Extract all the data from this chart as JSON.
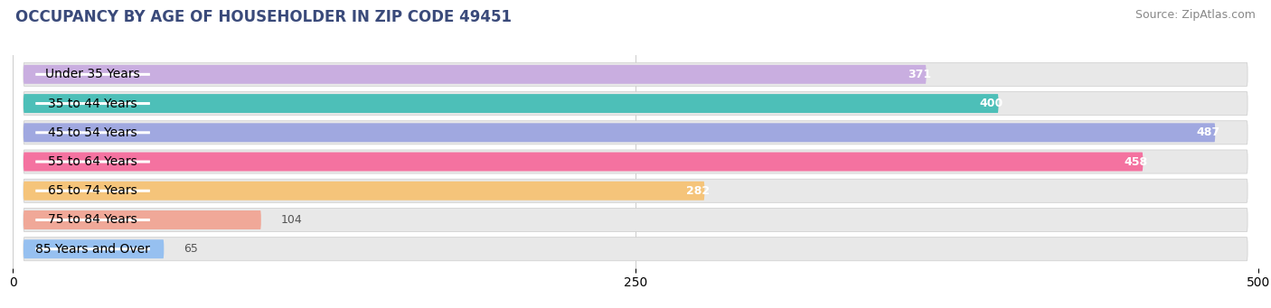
{
  "title": "OCCUPANCY BY AGE OF HOUSEHOLDER IN ZIP CODE 49451",
  "source": "Source: ZipAtlas.com",
  "categories": [
    "Under 35 Years",
    "35 to 44 Years",
    "45 to 54 Years",
    "55 to 64 Years",
    "65 to 74 Years",
    "75 to 84 Years",
    "85 Years and Over"
  ],
  "values": [
    371,
    400,
    487,
    458,
    282,
    104,
    65
  ],
  "bar_colors": [
    "#c9aee0",
    "#4dbfb8",
    "#a0a8e0",
    "#f472a0",
    "#f5c47a",
    "#f0a898",
    "#96c0f0"
  ],
  "bar_bg_color": "#e8e8e8",
  "label_bg_color": "#ffffff",
  "xlim": [
    0,
    500
  ],
  "xticks": [
    0,
    250,
    500
  ],
  "title_fontsize": 12,
  "source_fontsize": 9,
  "label_fontsize": 10,
  "value_fontsize": 9,
  "background_color": "#ffffff",
  "bar_height": 0.65,
  "title_color": "#3a4a7a",
  "source_color": "#888888",
  "grid_color": "#cccccc"
}
